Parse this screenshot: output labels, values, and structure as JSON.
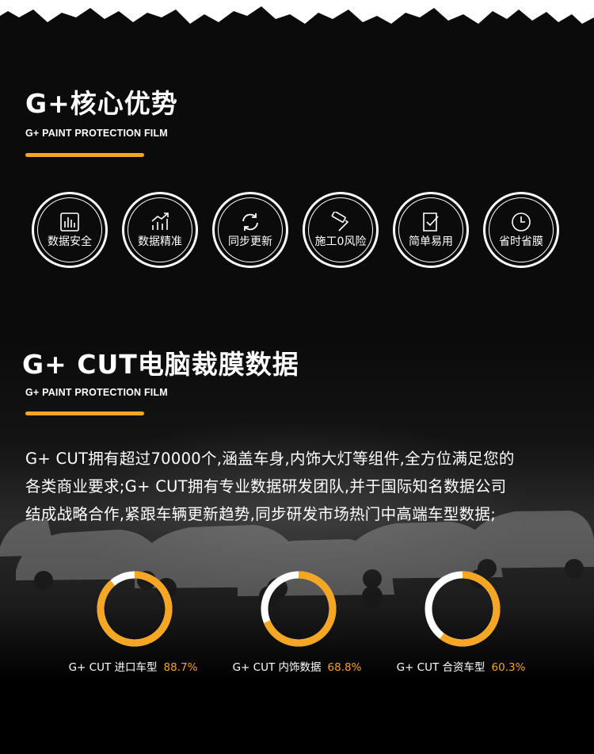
{
  "section1": {
    "title": "G+核心优势",
    "subtitle": "G+ PAINT PROTECTION FILM"
  },
  "features": [
    {
      "label": "数据安全",
      "icon": "bar-chart-icon"
    },
    {
      "label": "数据精准",
      "icon": "rising-chart-icon"
    },
    {
      "label": "同步更新",
      "icon": "sync-icon"
    },
    {
      "label": "施工0风险",
      "icon": "paint-roller-icon"
    },
    {
      "label": "简单易用",
      "icon": "checklist-icon"
    },
    {
      "label": "省时省膜",
      "icon": "clock-icon"
    }
  ],
  "section2": {
    "title": "G+ CUT电脑裁膜数据",
    "subtitle": "G+ PAINT PROTECTION FILM"
  },
  "description": {
    "line1": "G+ CUT拥有超过70000个,涵盖车身,内饰大灯等组件,全方位满足您的",
    "line2": "各类商业要求;G+ CUT拥有专业数据研发团队,并于国际知名数据公司",
    "line3": "结成战略合作,紧跟车辆更新趋势,同步研发市场热门中高端车型数据;"
  },
  "stats": [
    {
      "label": "G+ CUT 进口车型",
      "value_text": "88.7%",
      "value": 0.887
    },
    {
      "label": "G+ CUT 内饰数据",
      "value_text": "68.8%",
      "value": 0.688
    },
    {
      "label": "G+ CUT 合资车型",
      "value_text": "60.3%",
      "value": 0.603
    }
  ],
  "colors": {
    "accent": "#f5a623",
    "ring_track": "#ffffff",
    "background": "#000000"
  }
}
